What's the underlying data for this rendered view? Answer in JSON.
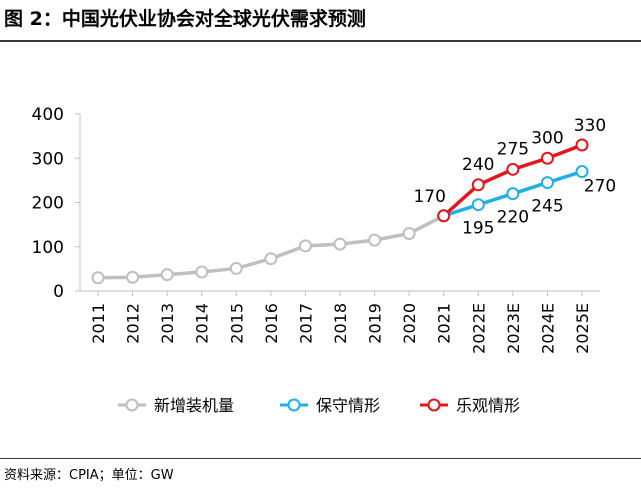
{
  "figure": {
    "title": "图 2：中国光伏业协会对全球光伏需求预测",
    "source": "资料来源：CPIA；单位：GW"
  },
  "colors": {
    "new_installed": "#BFBFBF",
    "conservative": "#1FB0E6",
    "optimistic": "#E8141C",
    "axis": "#BFBFBF",
    "text": "#000000"
  },
  "chart_data": {
    "type": "line",
    "categories": [
      "2011",
      "2012",
      "2013",
      "2014",
      "2015",
      "2016",
      "2017",
      "2018",
      "2019",
      "2020",
      "2021",
      "2022E",
      "2023E",
      "2024E",
      "2025E"
    ],
    "ylim": [
      0,
      400
    ],
    "yticks": [
      0,
      100,
      200,
      300,
      400
    ],
    "grid": false,
    "legend_position": "bottom",
    "series": [
      {
        "name": "新增装机量",
        "key": "new_installed",
        "values": [
          30,
          31,
          37,
          43,
          51,
          73,
          102,
          106,
          115,
          130,
          170,
          null,
          null,
          null,
          null
        ],
        "labels": []
      },
      {
        "name": "保守情形",
        "key": "conservative",
        "values": [
          null,
          null,
          null,
          null,
          null,
          null,
          null,
          null,
          null,
          null,
          170,
          195,
          220,
          245,
          270
        ],
        "labels": [
          {
            "index": 11,
            "text": "195"
          },
          {
            "index": 12,
            "text": "220"
          },
          {
            "index": 13,
            "text": "245"
          },
          {
            "index": 14,
            "text": "270"
          }
        ]
      },
      {
        "name": "乐观情形",
        "key": "optimistic",
        "values": [
          null,
          null,
          null,
          null,
          null,
          null,
          null,
          null,
          null,
          null,
          170,
          240,
          275,
          300,
          330
        ],
        "labels": [
          {
            "index": 10,
            "text": "170"
          },
          {
            "index": 11,
            "text": "240"
          },
          {
            "index": 12,
            "text": "275"
          },
          {
            "index": 13,
            "text": "300"
          },
          {
            "index": 14,
            "text": "330"
          }
        ]
      }
    ]
  }
}
